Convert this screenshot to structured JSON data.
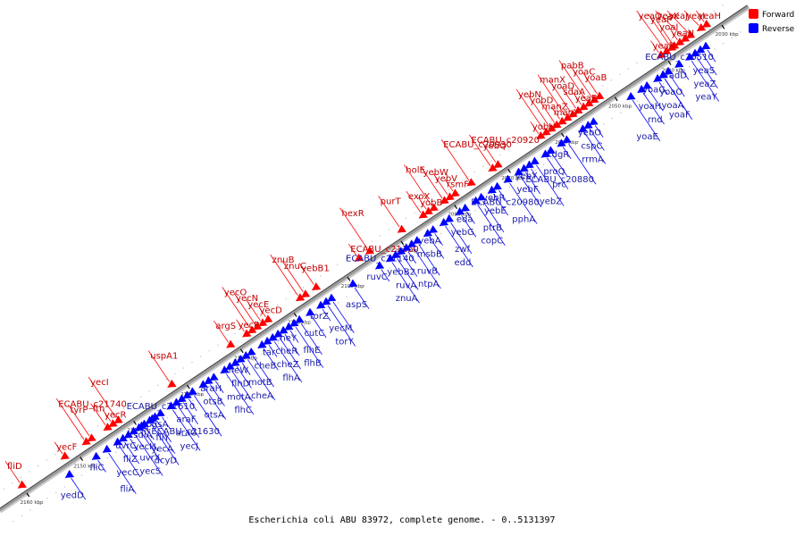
{
  "caption": "Escherichia coli ABU 83972, complete genome. - 0..5131397",
  "legend": {
    "forward": {
      "label": "Forward",
      "color": "#ff0000"
    },
    "reverse": {
      "label": "Reverse",
      "color": "#0000ff"
    }
  },
  "axis": {
    "start_kbp": 2025,
    "end_kbp": 2165
  },
  "ticks": [
    "2030 kbp",
    "2040 kbp",
    "2050 kbp",
    "2060 kbp",
    "2070 kbp",
    "2080 kbp",
    "2090 kbp",
    "2100 kbp",
    "2110 kbp",
    "2120 kbp",
    "2130 kbp",
    "2140 kbp",
    "2150 kbp",
    "2160 kbp"
  ],
  "forward_genes": [
    {
      "name": "yeaH",
      "kbp": 2032
    },
    {
      "name": "yeaI",
      "kbp": 2033
    },
    {
      "name": "yeaJ",
      "kbp": 2035
    },
    {
      "name": "yeaK",
      "kbp": 2036
    },
    {
      "name": "yoaI",
      "kbp": 2038
    },
    {
      "name": "yeaN",
      "kbp": 2037
    },
    {
      "name": "yeaP",
      "kbp": 2038.5
    },
    {
      "name": "yeaQ",
      "kbp": 2039.5
    },
    {
      "name": "yeaR",
      "kbp": 2040.5
    },
    {
      "name": "yoaB",
      "kbp": 2052
    },
    {
      "name": "yoaC",
      "kbp": 2053
    },
    {
      "name": "pabB",
      "kbp": 2054
    },
    {
      "name": "yeaB",
      "kbp": 2055
    },
    {
      "name": "sdaA",
      "kbp": 2056
    },
    {
      "name": "yoaD",
      "kbp": 2057
    },
    {
      "name": "manX",
      "kbp": 2058
    },
    {
      "name": "manY",
      "kbp": 2059
    },
    {
      "name": "manZ",
      "kbp": 2060
    },
    {
      "name": "yobD",
      "kbp": 2061
    },
    {
      "name": "yebN",
      "kbp": 2062
    },
    {
      "name": "yobH",
      "kbp": 2063
    },
    {
      "name": "yebQ",
      "kbp": 2071
    },
    {
      "name": "ECABU_c20920",
      "kbp": 2072
    },
    {
      "name": "ECABU_c20930",
      "kbp": 2076
    },
    {
      "name": "rsmF",
      "kbp": 2079
    },
    {
      "name": "yebV",
      "kbp": 2080
    },
    {
      "name": "yebW",
      "kbp": 2081
    },
    {
      "name": "holE",
      "kbp": 2083
    },
    {
      "name": "yobB",
      "kbp": 2084
    },
    {
      "name": "exoX",
      "kbp": 2085
    },
    {
      "name": "purT",
      "kbp": 2089
    },
    {
      "name": "hexR",
      "kbp": 2095
    },
    {
      "name": "ECABU_c21160",
      "kbp": 2097
    },
    {
      "name": "yebB1",
      "kbp": 2105
    },
    {
      "name": "znuC",
      "kbp": 2107
    },
    {
      "name": "znuB",
      "kbp": 2108
    },
    {
      "name": "yecD",
      "kbp": 2114
    },
    {
      "name": "yecE",
      "kbp": 2115
    },
    {
      "name": "yecN",
      "kbp": 2116
    },
    {
      "name": "yecO",
      "kbp": 2117
    },
    {
      "name": "yecP",
      "kbp": 2118
    },
    {
      "name": "argS",
      "kbp": 2121
    },
    {
      "name": "uspA1",
      "kbp": 2132
    },
    {
      "name": "yecI",
      "kbp": 2142
    },
    {
      "name": "yecR",
      "kbp": 2143
    },
    {
      "name": "ftn",
      "kbp": 2144
    },
    {
      "name": "tyrP",
      "kbp": 2147
    },
    {
      "name": "ECABU_c21740",
      "kbp": 2148
    },
    {
      "name": "yecF",
      "kbp": 2152
    },
    {
      "name": "fliD",
      "kbp": 2160
    }
  ],
  "reverse_genes": [
    {
      "name": "yeaZ",
      "kbp": 2036
    },
    {
      "name": "ECABU_c20510",
      "kbp": 2034
    },
    {
      "name": "yeaY",
      "kbp": 2037
    },
    {
      "name": "yeaS",
      "kbp": 2035
    },
    {
      "name": "fadD",
      "kbp": 2039
    },
    {
      "name": "yoaA",
      "kbp": 2042
    },
    {
      "name": "yoaH",
      "kbp": 2045
    },
    {
      "name": "yoaE",
      "kbp": 2048
    },
    {
      "name": "rnd",
      "kbp": 2046
    },
    {
      "name": "yoaO",
      "kbp": 2041
    },
    {
      "name": "yoaF",
      "kbp": 2042
    },
    {
      "name": "yoaG",
      "kbp": 2043
    },
    {
      "name": "yebO",
      "kbp": 2055
    },
    {
      "name": "cspC",
      "kbp": 2056
    },
    {
      "name": "rrmA",
      "kbp": 2057
    },
    {
      "name": "ECABU_c20880",
      "kbp": 2060
    },
    {
      "name": "kdgR",
      "kbp": 2061
    },
    {
      "name": "proQ",
      "kbp": 2063
    },
    {
      "name": "prc",
      "kbp": 2064
    },
    {
      "name": "yebZ",
      "kbp": 2066
    },
    {
      "name": "yebY",
      "kbp": 2067
    },
    {
      "name": "yebF",
      "kbp": 2068
    },
    {
      "name": "ECABU_c20980",
      "kbp": 2069
    },
    {
      "name": "pphA",
      "kbp": 2071
    },
    {
      "name": "yebR",
      "kbp": 2073
    },
    {
      "name": "yebE",
      "kbp": 2074
    },
    {
      "name": "ptrB",
      "kbp": 2076
    },
    {
      "name": "copC",
      "kbp": 2077
    },
    {
      "name": "eda",
      "kbp": 2079
    },
    {
      "name": "yebG",
      "kbp": 2080
    },
    {
      "name": "zwf",
      "kbp": 2082
    },
    {
      "name": "edd",
      "kbp": 2083
    },
    {
      "name": "yebA",
      "kbp": 2085
    },
    {
      "name": "msbB",
      "kbp": 2086
    },
    {
      "name": "ruvB",
      "kbp": 2088
    },
    {
      "name": "ntpA",
      "kbp": 2089
    },
    {
      "name": "ECABU_c21140",
      "kbp": 2090
    },
    {
      "name": "yebB2",
      "kbp": 2091
    },
    {
      "name": "ruvA",
      "kbp": 2092
    },
    {
      "name": "znuA",
      "kbp": 2093
    },
    {
      "name": "ruvC",
      "kbp": 2095
    },
    {
      "name": "aspS",
      "kbp": 2100
    },
    {
      "name": "yecM",
      "kbp": 2104
    },
    {
      "name": "torY",
      "kbp": 2105
    },
    {
      "name": "torZ",
      "kbp": 2106
    },
    {
      "name": "cutC",
      "kbp": 2108
    },
    {
      "name": "flhE",
      "kbp": 2110
    },
    {
      "name": "flhB",
      "kbp": 2111
    },
    {
      "name": "cheY",
      "kbp": 2112
    },
    {
      "name": "cheR",
      "kbp": 2113
    },
    {
      "name": "cheZ",
      "kbp": 2114
    },
    {
      "name": "flhA",
      "kbp": 2115
    },
    {
      "name": "tar",
      "kbp": 2116
    },
    {
      "name": "cheB",
      "kbp": 2117
    },
    {
      "name": "motB",
      "kbp": 2119
    },
    {
      "name": "cheA",
      "kbp": 2120
    },
    {
      "name": "cheW",
      "kbp": 2121
    },
    {
      "name": "flhD",
      "kbp": 2122
    },
    {
      "name": "motA",
      "kbp": 2123
    },
    {
      "name": "flhC",
      "kbp": 2124
    },
    {
      "name": "araH",
      "kbp": 2126
    },
    {
      "name": "otsB",
      "kbp": 2127
    },
    {
      "name": "otsA",
      "kbp": 2128
    },
    {
      "name": "ECABU_c21630",
      "kbp": 2130
    },
    {
      "name": "ECABU_c21610",
      "kbp": 2131
    },
    {
      "name": "araF",
      "kbp": 2132
    },
    {
      "name": "araG",
      "kbp": 2133
    },
    {
      "name": "yecJ",
      "kbp": 2134
    },
    {
      "name": "fliY",
      "kbp": 2137
    },
    {
      "name": "pgsA",
      "kbp": 2136
    },
    {
      "name": "dcyD",
      "kbp": 2138
    },
    {
      "name": "yecA",
      "kbp": 2137.5
    },
    {
      "name": "sdiA",
      "kbp": 2139
    },
    {
      "name": "yecH",
      "kbp": 2139.5
    },
    {
      "name": "uvrY",
      "kbp": 2140
    },
    {
      "name": "yecS",
      "kbp": 2141
    },
    {
      "name": "uvrC",
      "kbp": 2142
    },
    {
      "name": "fliZ",
      "kbp": 2143
    },
    {
      "name": "yecC",
      "kbp": 2144
    },
    {
      "name": "fliA",
      "kbp": 2146
    },
    {
      "name": "fliC",
      "kbp": 2148
    },
    {
      "name": "yedD",
      "kbp": 2153
    }
  ]
}
